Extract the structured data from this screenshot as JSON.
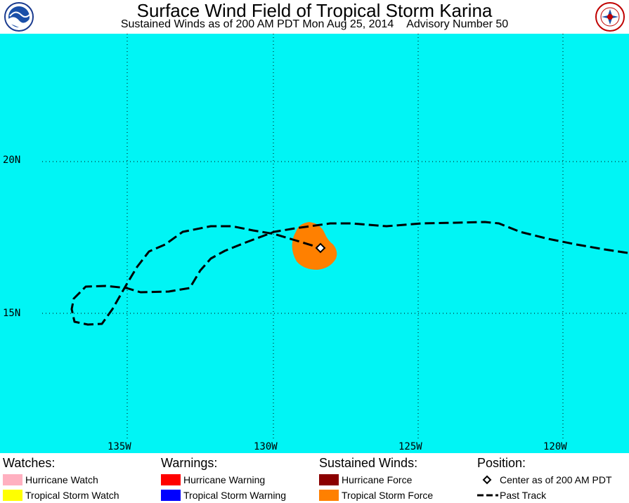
{
  "header": {
    "title": "Surface Wind Field of Tropical Storm Karina",
    "subtitle_time": "Sustained Winds as of 200 AM PDT Mon Aug 25, 2014",
    "subtitle_advisory": "Advisory Number 50",
    "left_logo": "noaa-logo",
    "right_logo": "nws-logo"
  },
  "map": {
    "ocean_color": "#00f5f5",
    "lat_labels": [
      "20N",
      "15N"
    ],
    "lon_labels": [
      "135W",
      "130W",
      "125W",
      "120W"
    ],
    "storm_center": {
      "lat": 17.2,
      "lon": -128.4
    },
    "tropical_storm_force_color": "#ff8000"
  },
  "legend": {
    "watches": {
      "heading": "Watches:",
      "items": [
        {
          "label": "Hurricane Watch",
          "color": "#ffb0c0"
        },
        {
          "label": "Tropical Storm Watch",
          "color": "#ffff00"
        }
      ]
    },
    "warnings": {
      "heading": "Warnings:",
      "items": [
        {
          "label": "Hurricane Warning",
          "color": "#ff0000"
        },
        {
          "label": "Tropical Storm Warning",
          "color": "#0000ff"
        }
      ]
    },
    "winds": {
      "heading": "Sustained Winds:",
      "items": [
        {
          "label": "Hurricane Force",
          "color": "#8b0000"
        },
        {
          "label": "Tropical Storm Force",
          "color": "#ff8000"
        }
      ]
    },
    "position": {
      "heading": "Position:",
      "items": [
        {
          "label": "Center as of 200 AM PDT",
          "symbol": "diamond-icon"
        },
        {
          "label": "Past Track",
          "symbol": "dashed-line-icon"
        }
      ]
    }
  }
}
